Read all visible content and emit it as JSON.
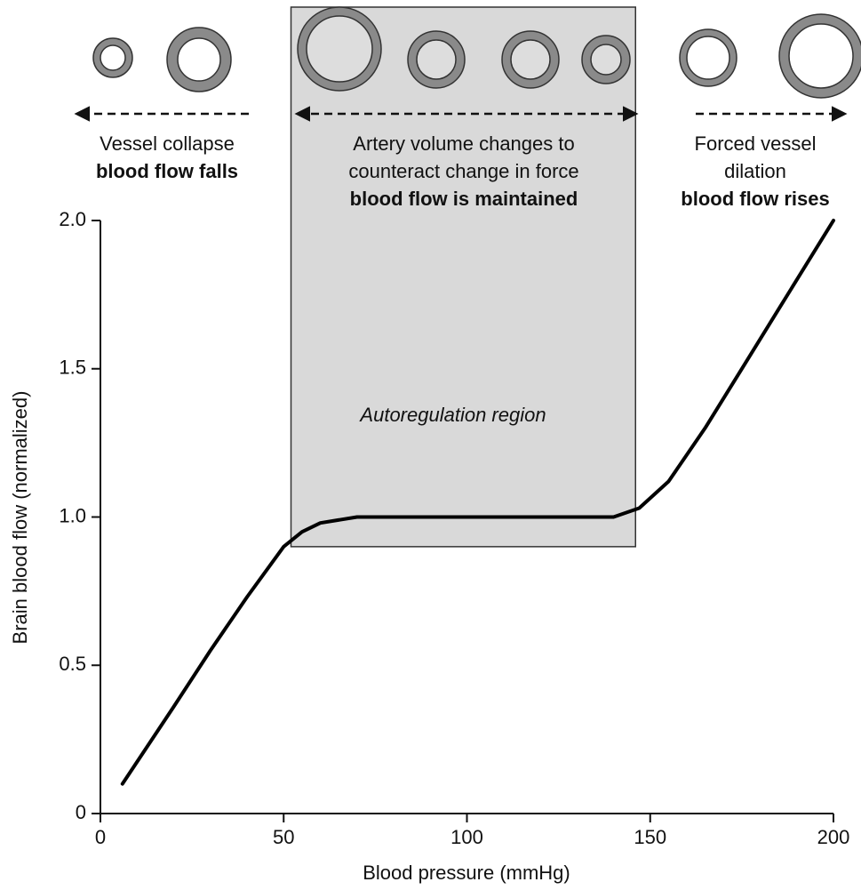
{
  "chart_data": {
    "type": "line",
    "annotations": {
      "left": [
        "Vessel collapse",
        "blood flow falls"
      ],
      "middle": [
        "Artery volume changes to",
        "counteract change in force",
        "blood flow is maintained"
      ],
      "right": [
        "Forced vessel",
        "dilation",
        "blood flow rises"
      ],
      "region": "Autoregulation region"
    },
    "shaded_region": {
      "x": [
        52,
        146
      ],
      "y_bottom": 0.9
    },
    "x": [
      6,
      20,
      30,
      40,
      50,
      55,
      60,
      70,
      100,
      140,
      147,
      155,
      165,
      175,
      185,
      200
    ],
    "series": [
      {
        "color": "#000000",
        "values": [
          0.1,
          0.36,
          0.55,
          0.73,
          0.9,
          0.95,
          0.98,
          1.0,
          1.0,
          1.0,
          1.03,
          1.12,
          1.3,
          1.5,
          1.7,
          2.0
        ]
      }
    ],
    "xlabel": "Blood pressure (mmHg)",
    "ylabel": "Brain blood flow (normalized)",
    "xlim": [
      0,
      200
    ],
    "xticks": [
      0,
      50,
      100,
      150,
      200
    ],
    "ylim": [
      0,
      2
    ],
    "yticks": [
      0,
      0.5,
      {
        "value": 1,
        "label": "1.0"
      },
      1.5,
      {
        "value": 2,
        "label": "2.0"
      }
    ],
    "grid": false
  }
}
